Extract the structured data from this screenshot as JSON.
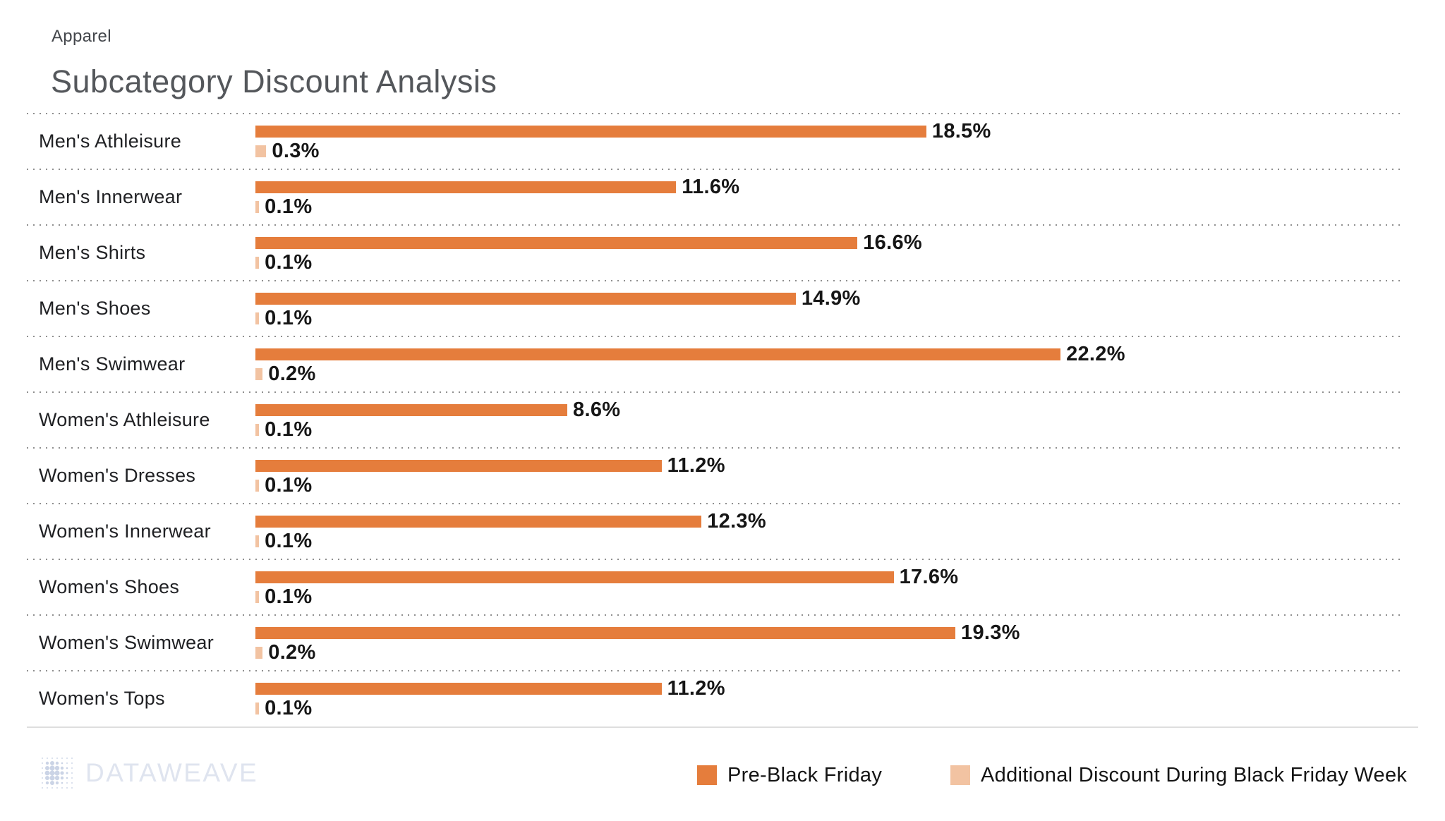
{
  "header": {
    "eyebrow": "Apparel",
    "title": "Subcategory Discount Analysis"
  },
  "chart_data": {
    "type": "bar",
    "orientation": "horizontal",
    "title": "Subcategory Discount Analysis",
    "group_label": "Apparel",
    "categories": [
      "Men's Athleisure",
      "Men's Innerwear",
      "Men's Shirts",
      "Men's Shoes",
      "Men's Swimwear",
      "Women's Athleisure",
      "Women's Dresses",
      "Women's Innerwear",
      "Women's Shoes",
      "Women's Swimwear",
      "Women's Tops"
    ],
    "series": [
      {
        "name": "Pre-Black Friday",
        "color": "#E57D3C",
        "values": [
          18.5,
          11.6,
          16.6,
          14.9,
          22.2,
          8.6,
          11.2,
          12.3,
          17.6,
          19.3,
          11.2
        ]
      },
      {
        "name": "Additional Discount During Black Friday Week",
        "color": "#F2C3A2",
        "values": [
          0.3,
          0.1,
          0.1,
          0.1,
          0.2,
          0.1,
          0.1,
          0.1,
          0.1,
          0.2,
          0.1
        ]
      }
    ],
    "value_suffix": "%",
    "value_decimals": 1,
    "data_labels": true,
    "xlim": [
      0,
      32
    ],
    "grid": "dotted-row-separators",
    "legend_position": "bottom-right"
  },
  "footer": {
    "brand": "DATAWEAVE"
  },
  "style": {
    "background": "#FFFFFF",
    "bar_dark": "#E57D3C",
    "bar_light": "#F2C3A2",
    "title_color": "#54575B",
    "eyebrow_color": "#43464B",
    "label_color": "#202124",
    "value_color": "#161616",
    "separator_color": "#8F8F8F",
    "baseline_color": "#DEDEDE",
    "brand_color": "#DFE4EF"
  }
}
